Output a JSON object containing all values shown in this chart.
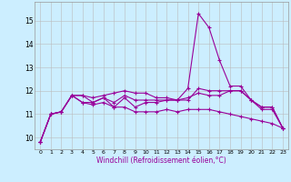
{
  "title": "",
  "xlabel": "Windchill (Refroidissement éolien,°C)",
  "x": [
    0,
    1,
    2,
    3,
    4,
    5,
    6,
    7,
    8,
    9,
    10,
    11,
    12,
    13,
    14,
    15,
    16,
    17,
    18,
    19,
    20,
    21,
    22,
    23
  ],
  "lines": [
    [
      9.8,
      11.0,
      11.1,
      11.8,
      11.8,
      11.7,
      11.8,
      11.9,
      12.0,
      11.9,
      11.9,
      11.7,
      11.7,
      11.6,
      12.1,
      15.3,
      14.7,
      13.3,
      12.2,
      12.2,
      11.6,
      11.2,
      11.2,
      10.4
    ],
    [
      9.8,
      11.0,
      11.1,
      11.8,
      11.5,
      11.5,
      11.7,
      11.5,
      11.8,
      11.6,
      11.6,
      11.6,
      11.6,
      11.6,
      11.6,
      12.1,
      12.0,
      12.0,
      12.0,
      12.0,
      11.6,
      11.3,
      11.3,
      10.4
    ],
    [
      9.8,
      11.0,
      11.1,
      11.8,
      11.8,
      11.5,
      11.7,
      11.3,
      11.7,
      11.3,
      11.5,
      11.5,
      11.6,
      11.6,
      11.7,
      11.9,
      11.8,
      11.8,
      12.0,
      12.0,
      11.6,
      11.3,
      11.3,
      10.4
    ],
    [
      9.8,
      11.0,
      11.1,
      11.8,
      11.5,
      11.4,
      11.5,
      11.3,
      11.3,
      11.1,
      11.1,
      11.1,
      11.2,
      11.1,
      11.2,
      11.2,
      11.2,
      11.1,
      11.0,
      10.9,
      10.8,
      10.7,
      10.6,
      10.4
    ]
  ],
  "line_color": "#990099",
  "bg_color": "#cceeff",
  "grid_color": "#bbbbbb",
  "ylim": [
    9.5,
    15.8
  ],
  "yticks": [
    10,
    11,
    12,
    13,
    14,
    15
  ],
  "xlim": [
    -0.5,
    23.5
  ],
  "marker": "+",
  "markersize": 3,
  "linewidth": 0.8
}
